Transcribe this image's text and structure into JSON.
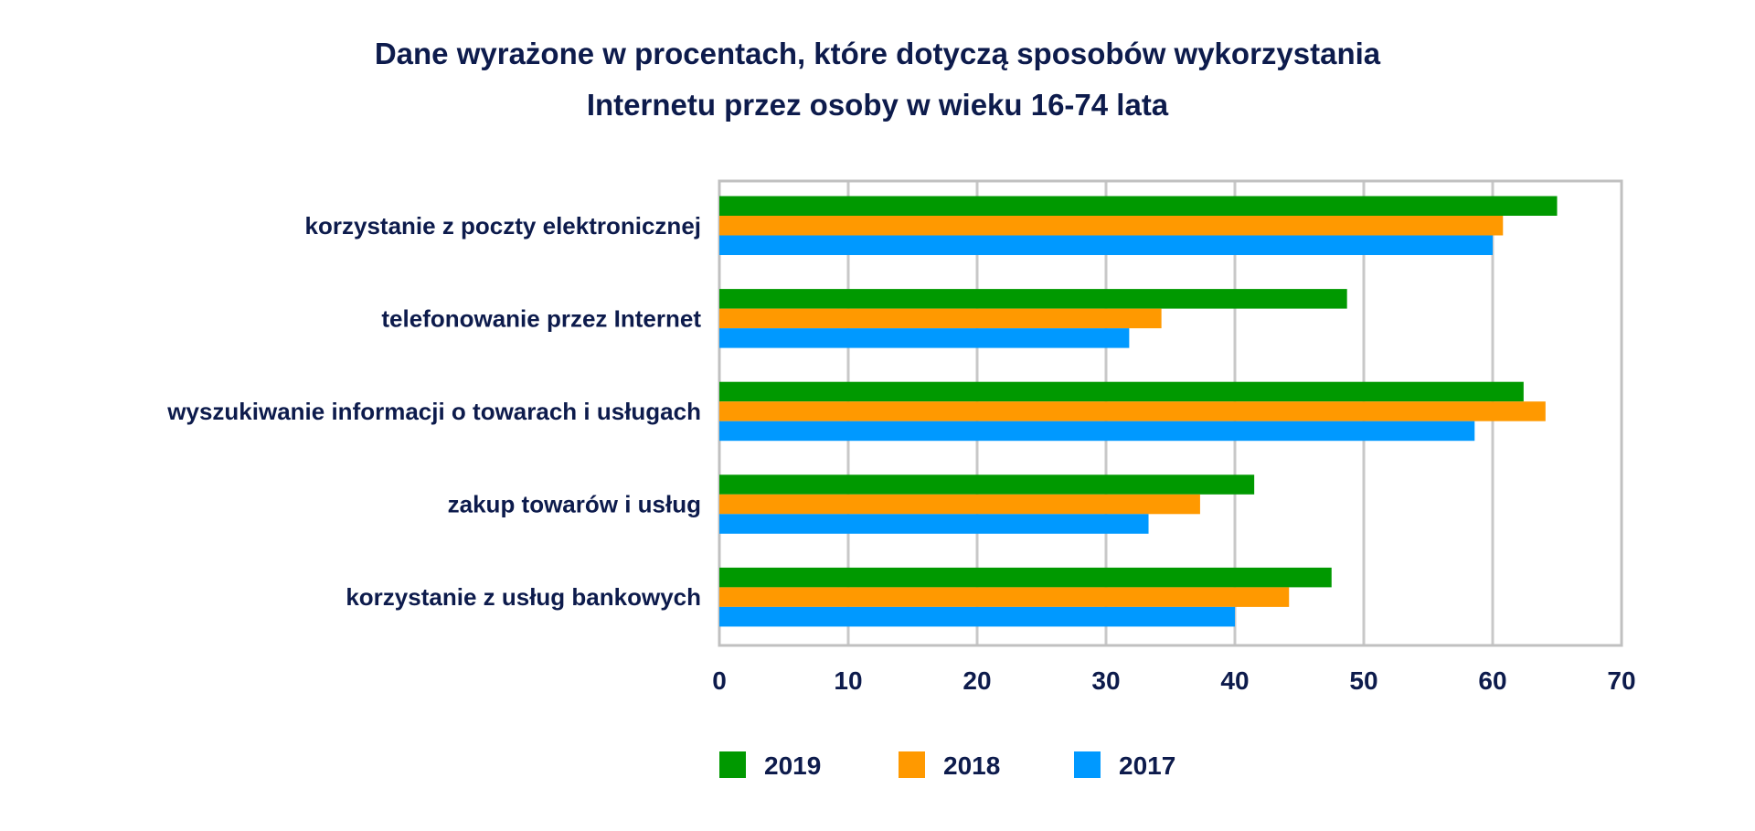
{
  "chart_data": {
    "type": "bar",
    "orientation": "horizontal",
    "title_lines": [
      "Dane wyrażone w procentach, które dotyczą sposobów wykorzystania",
      "Internetu przez osoby w wieku 16-74 lata"
    ],
    "categories": [
      "korzystanie z poczty elektronicznej",
      "telefonowanie przez Internet",
      "wyszukiwanie informacji o towarach i usługach",
      "zakup towarów i usług",
      "korzystanie z usług bankowych"
    ],
    "series": [
      {
        "name": "2019",
        "color": "#009900",
        "values": [
          65,
          48.7,
          62.4,
          41.5,
          47.5
        ]
      },
      {
        "name": "2018",
        "color": "#ff9900",
        "values": [
          60.8,
          34.3,
          64.1,
          37.3,
          44.2
        ]
      },
      {
        "name": "2017",
        "color": "#0099ff",
        "values": [
          60,
          31.8,
          58.6,
          33.3,
          40
        ]
      }
    ],
    "xlim": [
      0,
      70
    ],
    "xticks": [
      "0",
      "10",
      "20",
      "30",
      "40",
      "50",
      "60",
      "70"
    ],
    "grid": true,
    "legend": "bottom",
    "xlabel": "",
    "ylabel": ""
  }
}
